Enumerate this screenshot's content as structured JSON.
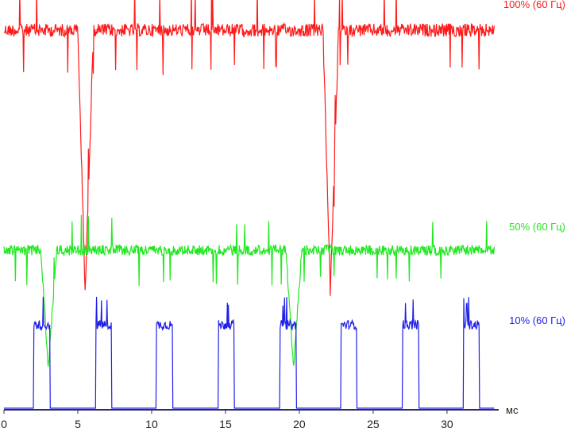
{
  "chart_data": {
    "type": "line",
    "title": "",
    "xlabel": "",
    "ylabel": "",
    "x_unit": "мс",
    "xlim": [
      0,
      33.5
    ],
    "x_ticks": [
      0,
      5,
      10,
      15,
      20,
      25,
      30
    ],
    "grid": false,
    "legend": "inline labels at right end of each trace",
    "series": [
      {
        "name": "100% (60 Гц)",
        "color": "#ff1a1a",
        "trace": "high",
        "period_ms": 16.65,
        "dips_ms": [
          5.5,
          22.1
        ],
        "dip_depth": 0.8,
        "noise": 0.04
      },
      {
        "name": "50% (60 Гц)",
        "color": "#22e822",
        "trace": "mid",
        "period_ms": 16.65,
        "dips_ms": [
          3.0,
          19.6
        ],
        "dip_depth": 0.35,
        "noise": 0.03
      },
      {
        "name": "10% (60 Гц)",
        "color": "#1f1fe8",
        "trace": "low",
        "period_ms": 4.16,
        "pulses_ms": [
          [
            2.0,
            3.1
          ],
          [
            6.2,
            7.3
          ],
          [
            10.3,
            11.4
          ],
          [
            14.5,
            15.6
          ],
          [
            18.7,
            19.8
          ],
          [
            22.8,
            23.9
          ],
          [
            27.0,
            28.1
          ],
          [
            31.1,
            32.2
          ]
        ],
        "pulse_level": 0.35,
        "noise": 0.02
      }
    ]
  }
}
